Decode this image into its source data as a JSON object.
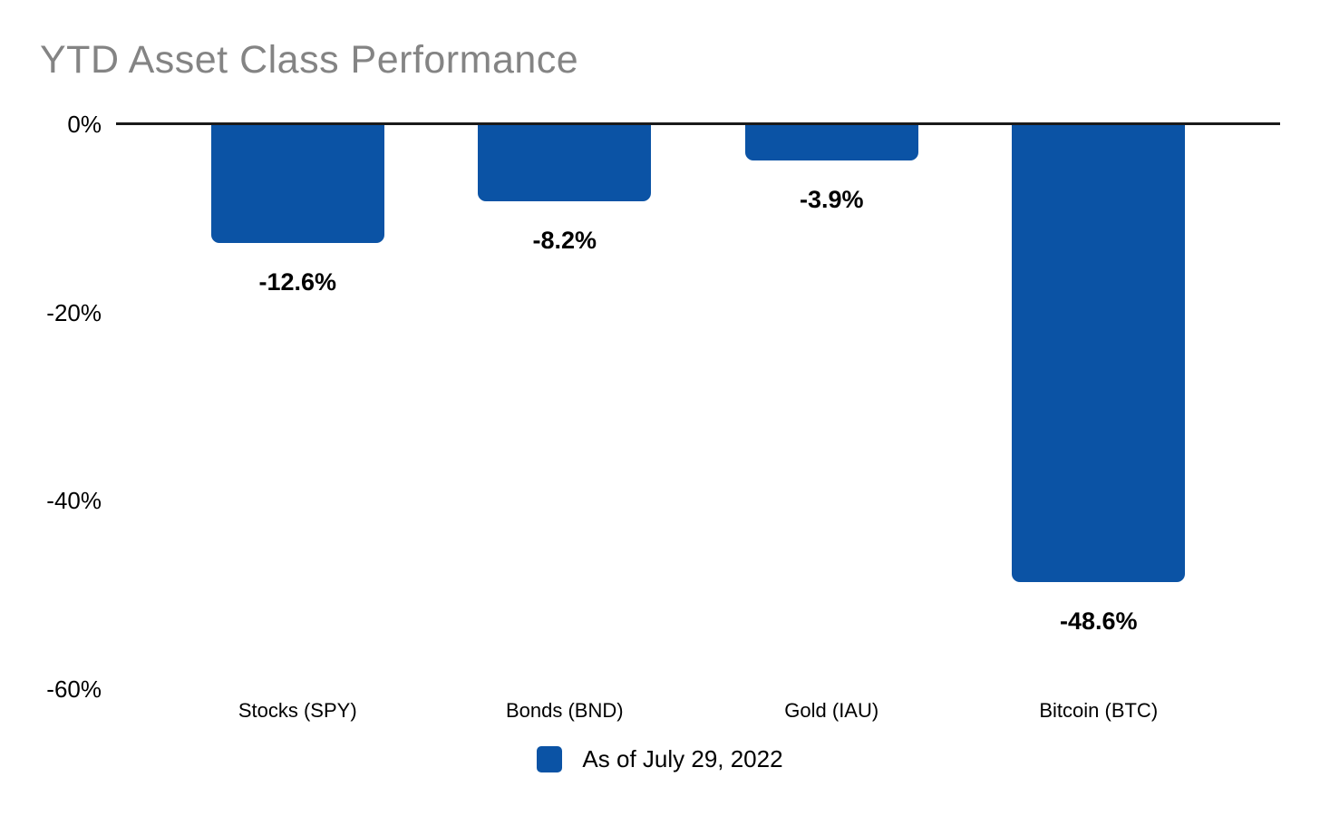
{
  "title": "YTD Asset Class Performance",
  "legend": {
    "label": "As of July 29, 2022"
  },
  "colors": {
    "bar": "#0b53a5",
    "title_text": "#848484",
    "axis_line": "#1a1a1a",
    "label_text": "#000000"
  },
  "chart_data": {
    "type": "bar",
    "title": "YTD Asset Class Performance",
    "categories": [
      "Stocks (SPY)",
      "Bonds (BND)",
      "Gold (IAU)",
      "Bitcoin (BTC)"
    ],
    "values": [
      -12.6,
      -8.2,
      -3.9,
      -48.6
    ],
    "value_labels": [
      "-12.6%",
      "-8.2%",
      "-3.9%",
      "-48.6%"
    ],
    "series": [
      {
        "name": "As of July 29, 2022",
        "values": [
          -12.6,
          -8.2,
          -3.9,
          -48.6
        ]
      }
    ],
    "xlabel": "",
    "ylabel": "",
    "ylim": [
      -60,
      0
    ],
    "y_ticks": [
      "0%",
      "-20%",
      "-40%",
      "-60%"
    ],
    "y_tick_values": [
      0,
      -20,
      -40,
      -60
    ],
    "grid": false,
    "legend_entries": [
      "As of July 29, 2022"
    ],
    "legend_position": "bottom-center",
    "bar_color": "#0b53a5"
  }
}
